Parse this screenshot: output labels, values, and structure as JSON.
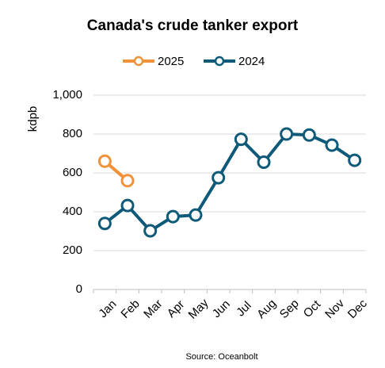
{
  "chart_data": {
    "type": "line",
    "title": "Canada's crude tanker export",
    "ylabel": "kdpb",
    "source": "Source: Oceanbolt",
    "categories": [
      "Jan",
      "Feb",
      "Mar",
      "Apr",
      "May",
      "Jun",
      "Jul",
      "Aug",
      "Sep",
      "Oct",
      "Nov",
      "Dec"
    ],
    "series": [
      {
        "name": "2025",
        "color": "#f0923a",
        "values": [
          660,
          560,
          null,
          null,
          null,
          null,
          null,
          null,
          null,
          null,
          null,
          null
        ]
      },
      {
        "name": "2024",
        "color": "#0e5a78",
        "values": [
          340,
          432,
          302,
          375,
          383,
          575,
          773,
          655,
          800,
          795,
          743,
          665
        ]
      }
    ],
    "ylim": [
      0,
      1000
    ],
    "yticks": [
      0,
      200,
      400,
      600,
      800,
      {
        "value": 1000,
        "label": "1,000"
      }
    ],
    "grid": true
  }
}
